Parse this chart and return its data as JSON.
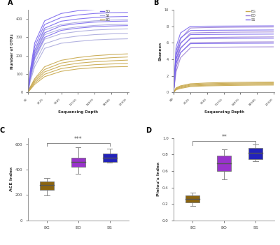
{
  "panel_A": {
    "title": "A",
    "xlabel": "Sequencing Depth",
    "ylabel": "Number of OTUs",
    "xlim": [
      0,
      22500
    ],
    "ylim": [
      0,
      450
    ],
    "xticks": [
      10,
      3725,
      7440,
      11155,
      14870,
      18585,
      22300
    ],
    "yticks": [
      0,
      100,
      200,
      300,
      400
    ],
    "x_vals": [
      0,
      10,
      500,
      1500,
      3725,
      7440,
      11155,
      14870,
      18585,
      22300
    ],
    "EO_lines": [
      [
        0,
        2,
        120,
        270,
        390,
        430,
        445,
        452,
        456,
        458
      ],
      [
        0,
        2,
        110,
        250,
        370,
        408,
        422,
        430,
        434,
        436
      ],
      [
        0,
        2,
        100,
        230,
        350,
        388,
        400,
        408,
        412,
        414
      ],
      [
        0,
        2,
        90,
        210,
        325,
        363,
        375,
        383,
        387,
        389
      ],
      [
        0,
        2,
        80,
        190,
        300,
        338,
        350,
        358,
        362,
        364
      ]
    ],
    "SS_lines": [
      [
        0,
        2,
        100,
        220,
        340,
        370,
        382,
        390,
        394,
        396
      ],
      [
        0,
        2,
        90,
        200,
        315,
        345,
        357,
        365,
        369,
        371
      ],
      [
        0,
        2,
        80,
        180,
        290,
        320,
        332,
        340,
        344,
        346
      ],
      [
        0,
        2,
        70,
        160,
        265,
        295,
        307,
        315,
        319,
        321
      ],
      [
        0,
        2,
        60,
        140,
        240,
        268,
        278,
        286,
        290,
        292
      ]
    ],
    "EG_lines": [
      [
        0,
        1,
        30,
        75,
        140,
        175,
        190,
        200,
        206,
        210
      ],
      [
        0,
        1,
        26,
        68,
        125,
        160,
        174,
        183,
        189,
        193
      ],
      [
        0,
        1,
        22,
        60,
        112,
        145,
        159,
        167,
        172,
        176
      ],
      [
        0,
        1,
        18,
        52,
        99,
        130,
        143,
        151,
        155,
        158
      ],
      [
        0,
        1,
        15,
        44,
        86,
        115,
        128,
        135,
        139,
        141
      ]
    ],
    "EO_color": "#7B68EE",
    "SS_color": "#AAAADD",
    "EG_color": "#C8A84B",
    "legend_order": [
      "EO",
      "SS",
      "EG"
    ]
  },
  "panel_B": {
    "title": "B",
    "xlabel": "Sequencing Depth",
    "ylabel": "Shannon",
    "xlim": [
      0,
      22500
    ],
    "ylim": [
      0,
      10
    ],
    "xticks": [
      0,
      10,
      3725,
      7440,
      11155,
      14870,
      18585,
      22300
    ],
    "yticks": [
      0,
      2,
      4,
      6,
      8,
      10
    ],
    "x_vals": [
      0,
      10,
      500,
      1500,
      3725,
      7440,
      11155,
      14870,
      18585,
      22300
    ],
    "EG_lines": [
      [
        0,
        0.05,
        0.55,
        0.8,
        1.05,
        1.15,
        1.2,
        1.23,
        1.25,
        1.26
      ],
      [
        0,
        0.05,
        0.5,
        0.72,
        0.96,
        1.05,
        1.1,
        1.13,
        1.15,
        1.16
      ],
      [
        0,
        0.04,
        0.44,
        0.64,
        0.88,
        0.96,
        1.01,
        1.04,
        1.06,
        1.07
      ],
      [
        0,
        0.04,
        0.38,
        0.56,
        0.79,
        0.87,
        0.92,
        0.95,
        0.97,
        0.98
      ],
      [
        0,
        0.03,
        0.32,
        0.48,
        0.71,
        0.79,
        0.83,
        0.86,
        0.88,
        0.89
      ]
    ],
    "EO_lines": [
      [
        0,
        0.5,
        4.5,
        6.5,
        7.8,
        7.85,
        7.88,
        7.9,
        7.91,
        7.92
      ],
      [
        0,
        0.45,
        4.0,
        5.9,
        7.2,
        7.25,
        7.28,
        7.3,
        7.31,
        7.32
      ],
      [
        0,
        0.4,
        3.5,
        5.3,
        6.6,
        6.65,
        6.68,
        6.7,
        6.71,
        6.72
      ],
      [
        0,
        0.35,
        3.0,
        4.8,
        6.0,
        6.05,
        6.08,
        6.1,
        6.11,
        6.12
      ],
      [
        0,
        0.3,
        2.5,
        4.2,
        5.4,
        5.45,
        5.48,
        5.5,
        5.51,
        5.52
      ]
    ],
    "SS_lines": [
      [
        0,
        0.6,
        5.5,
        7.2,
        8.0,
        8.02,
        8.03,
        8.04,
        8.05,
        8.06
      ],
      [
        0,
        0.55,
        5.0,
        6.6,
        7.5,
        7.52,
        7.53,
        7.54,
        7.55,
        7.56
      ],
      [
        0,
        0.5,
        4.5,
        6.0,
        7.0,
        7.02,
        7.03,
        7.04,
        7.05,
        7.06
      ],
      [
        0,
        0.45,
        4.0,
        5.4,
        6.5,
        6.52,
        6.53,
        6.54,
        6.55,
        6.56
      ],
      [
        0,
        0.4,
        3.5,
        4.8,
        5.9,
        5.92,
        5.93,
        5.94,
        5.95,
        5.96
      ]
    ],
    "EG_color": "#C8A84B",
    "EO_color": "#9B7FD4",
    "SS_color": "#7B68EE",
    "legend_order": [
      "EG",
      "EO",
      "SS"
    ]
  },
  "panel_C": {
    "title": "C",
    "ylabel": "ACE Index",
    "categories": [
      "EG",
      "EO",
      "SS"
    ],
    "colors": [
      "#8B6510",
      "#9933CC",
      "#2222BB"
    ],
    "EG": {
      "q1": 240,
      "median": 278,
      "q3": 308,
      "whisker_low": 195,
      "whisker_high": 332
    },
    "EO": {
      "q1": 420,
      "median": 458,
      "q3": 492,
      "whisker_low": 365,
      "whisker_high": 575
    },
    "SS": {
      "q1": 460,
      "median": 495,
      "q3": 528,
      "whisker_low": 453,
      "whisker_high": 565
    },
    "ylim": [
      0,
      650
    ],
    "yticks": [
      0,
      200,
      400,
      600
    ],
    "significance": "***",
    "sig_y": 610,
    "sig_x1": 0,
    "sig_x2": 2
  },
  "panel_D": {
    "title": "D",
    "ylabel": "Pielou's Index",
    "categories": [
      "EG",
      "EO",
      "SS"
    ],
    "colors": [
      "#8B6510",
      "#9933CC",
      "#2222BB"
    ],
    "EG": {
      "q1": 0.22,
      "median": 0.265,
      "q3": 0.3,
      "whisker_low": 0.175,
      "whisker_high": 0.335
    },
    "EO": {
      "q1": 0.6,
      "median": 0.695,
      "q3": 0.785,
      "whisker_low": 0.5,
      "whisker_high": 0.86
    },
    "SS": {
      "q1": 0.745,
      "median": 0.815,
      "q3": 0.875,
      "whisker_low": 0.715,
      "whisker_high": 0.92
    },
    "ylim": [
      0,
      1.0
    ],
    "yticks": [
      0.0,
      0.2,
      0.4,
      0.6,
      0.8,
      1.0
    ],
    "significance": "**",
    "sig_y": 0.96,
    "sig_x1": 0,
    "sig_x2": 2
  },
  "background_color": "#FFFFFF"
}
